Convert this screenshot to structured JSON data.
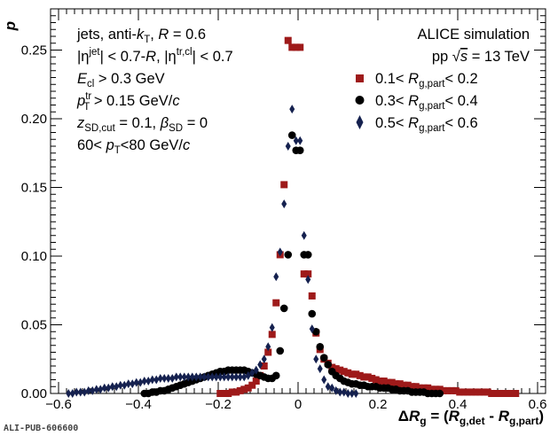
{
  "footer_id": "ALI-PUB-606600",
  "chart_data": {
    "type": "scatter",
    "title": "",
    "xlabel": "ΔR_g = (R_g,det - R_g,part)",
    "ylabel": "p",
    "xlim": [
      -0.62,
      0.62
    ],
    "ylim": [
      0,
      0.28
    ],
    "xticks": [
      -0.6,
      -0.4,
      -0.2,
      0,
      0.2,
      0.4,
      0.6
    ],
    "xtick_labels": [
      "−0.6",
      "−0.4",
      "−0.2",
      "0",
      "0.2",
      "0.4",
      "0.6"
    ],
    "yticks": [
      0,
      0.05,
      0.1,
      0.15,
      0.2,
      0.25
    ],
    "ytick_labels": [
      "0.00",
      "0.05",
      "0.10",
      "0.15",
      "0.20",
      "0.25"
    ],
    "grid": false,
    "legend_placement": "top-right",
    "annotations_left": [
      "jets, anti-kT, R = 0.6",
      "|ηjet| < 0.7-R, |ηtr,cl| < 0.7",
      "Ecl > 0.3 GeV",
      "pTtr > 0.15 GeV/c",
      "zSD,cut = 0.1, βSD = 0",
      "60< pT<80 GeV/c"
    ],
    "annotations_right": [
      "ALICE simulation",
      "pp √s = 13 TeV"
    ],
    "series": [
      {
        "name": "0.1< Rg,part< 0.2",
        "marker": "square",
        "color": "#9e1a1a",
        "x": [
          -0.195,
          -0.185,
          -0.175,
          -0.165,
          -0.155,
          -0.145,
          -0.135,
          -0.125,
          -0.115,
          -0.105,
          -0.095,
          -0.085,
          -0.075,
          -0.065,
          -0.055,
          -0.045,
          -0.035,
          -0.025,
          -0.015,
          -0.005,
          0.005,
          0.015,
          0.025,
          0.035,
          0.045,
          0.055,
          0.065,
          0.075,
          0.085,
          0.095,
          0.105,
          0.115,
          0.125,
          0.135,
          0.145,
          0.155,
          0.165,
          0.175,
          0.185,
          0.195,
          0.205,
          0.215,
          0.225,
          0.235,
          0.245,
          0.255,
          0.265,
          0.275,
          0.285,
          0.295,
          0.305,
          0.315,
          0.325,
          0.335,
          0.345,
          0.355,
          0.365,
          0.375,
          0.385,
          0.395,
          0.405,
          0.415,
          0.425,
          0.435,
          0.445,
          0.455,
          0.465,
          0.475,
          0.485,
          0.495,
          0.505,
          0.515,
          0.525,
          0.535,
          0.545
        ],
        "y": [
          0.0,
          0.0,
          0.0,
          0.001,
          0.001,
          0.002,
          0.003,
          0.004,
          0.006,
          0.009,
          0.013,
          0.02,
          0.03,
          0.043,
          0.066,
          0.101,
          0.152,
          0.257,
          0.252,
          0.252,
          0.252,
          0.087,
          0.087,
          0.071,
          0.044,
          0.032,
          0.025,
          0.022,
          0.019,
          0.018,
          0.017,
          0.016,
          0.015,
          0.014,
          0.014,
          0.013,
          0.012,
          0.012,
          0.011,
          0.01,
          0.009,
          0.009,
          0.008,
          0.008,
          0.007,
          0.007,
          0.006,
          0.006,
          0.005,
          0.005,
          0.004,
          0.004,
          0.004,
          0.003,
          0.003,
          0.003,
          0.002,
          0.002,
          0.002,
          0.002,
          0.001,
          0.001,
          0.001,
          0.001,
          0.001,
          0.001,
          0.001,
          0.001,
          0.0,
          0.0,
          0.0,
          0.0,
          0.0,
          0.0,
          0.0
        ]
      },
      {
        "name": "0.3< Rg,part< 0.4",
        "marker": "circle",
        "color": "#000000",
        "x": [
          -0.385,
          -0.375,
          -0.365,
          -0.355,
          -0.345,
          -0.335,
          -0.325,
          -0.315,
          -0.305,
          -0.295,
          -0.285,
          -0.275,
          -0.265,
          -0.255,
          -0.245,
          -0.235,
          -0.225,
          -0.215,
          -0.205,
          -0.195,
          -0.185,
          -0.175,
          -0.165,
          -0.155,
          -0.145,
          -0.135,
          -0.125,
          -0.115,
          -0.105,
          -0.095,
          -0.085,
          -0.075,
          -0.065,
          -0.055,
          -0.045,
          -0.035,
          -0.025,
          -0.015,
          -0.005,
          0.005,
          0.015,
          0.025,
          0.035,
          0.045,
          0.055,
          0.065,
          0.075,
          0.085,
          0.095,
          0.105,
          0.115,
          0.125,
          0.135,
          0.145,
          0.155,
          0.165,
          0.175,
          0.185,
          0.195,
          0.205,
          0.215,
          0.225,
          0.235,
          0.245,
          0.255,
          0.265,
          0.275,
          0.285,
          0.295,
          0.305,
          0.315,
          0.325,
          0.335,
          0.345,
          0.355
        ],
        "y": [
          0.0,
          0.0,
          0.001,
          0.001,
          0.002,
          0.002,
          0.003,
          0.004,
          0.005,
          0.006,
          0.007,
          0.008,
          0.009,
          0.01,
          0.011,
          0.012,
          0.013,
          0.014,
          0.015,
          0.016,
          0.016,
          0.017,
          0.017,
          0.017,
          0.017,
          0.017,
          0.016,
          0.015,
          0.014,
          0.013,
          0.012,
          0.011,
          0.011,
          0.013,
          0.031,
          0.062,
          0.101,
          0.188,
          0.177,
          0.177,
          0.101,
          0.101,
          0.058,
          0.045,
          0.034,
          0.026,
          0.021,
          0.016,
          0.013,
          0.011,
          0.009,
          0.008,
          0.007,
          0.007,
          0.006,
          0.006,
          0.005,
          0.005,
          0.005,
          0.004,
          0.004,
          0.004,
          0.003,
          0.003,
          0.002,
          0.002,
          0.002,
          0.001,
          0.001,
          0.001,
          0.001,
          0.0,
          0.0,
          0.0,
          0.0
        ]
      },
      {
        "name": "0.5< Rg,part< 0.6",
        "marker": "diamond",
        "color": "#15214f",
        "x": [
          -0.575,
          -0.565,
          -0.555,
          -0.545,
          -0.535,
          -0.525,
          -0.515,
          -0.505,
          -0.495,
          -0.485,
          -0.475,
          -0.465,
          -0.455,
          -0.445,
          -0.435,
          -0.425,
          -0.415,
          -0.405,
          -0.395,
          -0.385,
          -0.375,
          -0.365,
          -0.355,
          -0.345,
          -0.335,
          -0.325,
          -0.315,
          -0.305,
          -0.295,
          -0.285,
          -0.275,
          -0.265,
          -0.255,
          -0.245,
          -0.235,
          -0.225,
          -0.215,
          -0.205,
          -0.195,
          -0.185,
          -0.175,
          -0.165,
          -0.155,
          -0.145,
          -0.135,
          -0.125,
          -0.115,
          -0.105,
          -0.095,
          -0.085,
          -0.075,
          -0.065,
          -0.055,
          -0.045,
          -0.035,
          -0.025,
          -0.015,
          -0.005,
          0.005,
          0.015,
          0.025,
          0.035,
          0.045,
          0.055,
          0.065,
          0.075,
          0.085,
          0.095,
          0.105,
          0.115,
          0.125,
          0.135,
          0.145
        ],
        "y": [
          0.0,
          0.0,
          0.001,
          0.001,
          0.001,
          0.002,
          0.002,
          0.003,
          0.003,
          0.004,
          0.004,
          0.005,
          0.005,
          0.006,
          0.006,
          0.007,
          0.007,
          0.008,
          0.008,
          0.009,
          0.009,
          0.01,
          0.01,
          0.011,
          0.011,
          0.011,
          0.011,
          0.012,
          0.012,
          0.012,
          0.012,
          0.012,
          0.012,
          0.012,
          0.012,
          0.012,
          0.012,
          0.012,
          0.012,
          0.012,
          0.012,
          0.012,
          0.012,
          0.012,
          0.012,
          0.013,
          0.015,
          0.017,
          0.021,
          0.025,
          0.034,
          0.048,
          0.085,
          0.103,
          0.138,
          0.18,
          0.207,
          0.184,
          0.184,
          0.115,
          0.083,
          0.047,
          0.025,
          0.018,
          0.01,
          0.005,
          0.004,
          0.002,
          0.001,
          0.001,
          0.0,
          0.0,
          0.0
        ]
      }
    ]
  }
}
